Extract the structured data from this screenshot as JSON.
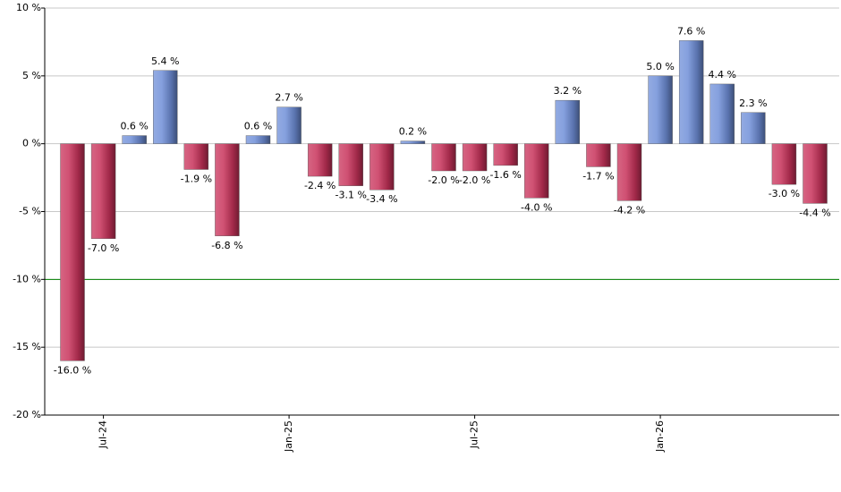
{
  "chart_data": {
    "type": "bar",
    "categories": [
      null,
      "Jul-24",
      null,
      null,
      null,
      null,
      null,
      "Jan-25",
      null,
      null,
      null,
      null,
      null,
      "Jul-25",
      null,
      null,
      null,
      null,
      null,
      "Jan-26",
      null,
      null,
      null,
      null,
      null
    ],
    "values": [
      -16.0,
      -7.0,
      0.6,
      5.4,
      -1.9,
      -6.8,
      0.6,
      2.7,
      -2.4,
      -3.1,
      -3.4,
      0.2,
      -2.0,
      -2.0,
      -1.6,
      -4.0,
      3.2,
      -1.7,
      -4.2,
      5.0,
      7.6,
      4.4,
      2.3,
      -3.0,
      -4.4
    ],
    "value_labels": [
      "-16.0 %",
      "-7.0 %",
      "0.6 %",
      "5.4 %",
      "-1.9 %",
      "-6.8 %",
      "0.6 %",
      "2.7 %",
      "-2.4 %",
      "-3.1 %",
      "-3.4 %",
      "0.2 %",
      "-2.0 %",
      "-2.0 %",
      "-1.6 %",
      "-4.0 %",
      "3.2 %",
      "-1.7 %",
      "-4.2 %",
      "5.0 %",
      "7.6 %",
      "4.4 %",
      "2.3 %",
      "-3.0 %",
      "-4.4 %"
    ],
    "positive_color": "#6f8fd8",
    "negative_color": "#c8325a",
    "ylim": [
      -20,
      10
    ],
    "yticks": [
      {
        "value": -20,
        "label": "-20 %"
      },
      {
        "value": -15,
        "label": "-15 %"
      },
      {
        "value": -10,
        "label": "-10 %"
      },
      {
        "value": -5,
        "label": "-5 %"
      },
      {
        "value": 0,
        "label": "0 %"
      },
      {
        "value": 5,
        "label": "5 %"
      },
      {
        "value": 10,
        "label": "10 %"
      }
    ],
    "grid": true,
    "reference_line": {
      "value": -10,
      "color": "#008000"
    }
  }
}
